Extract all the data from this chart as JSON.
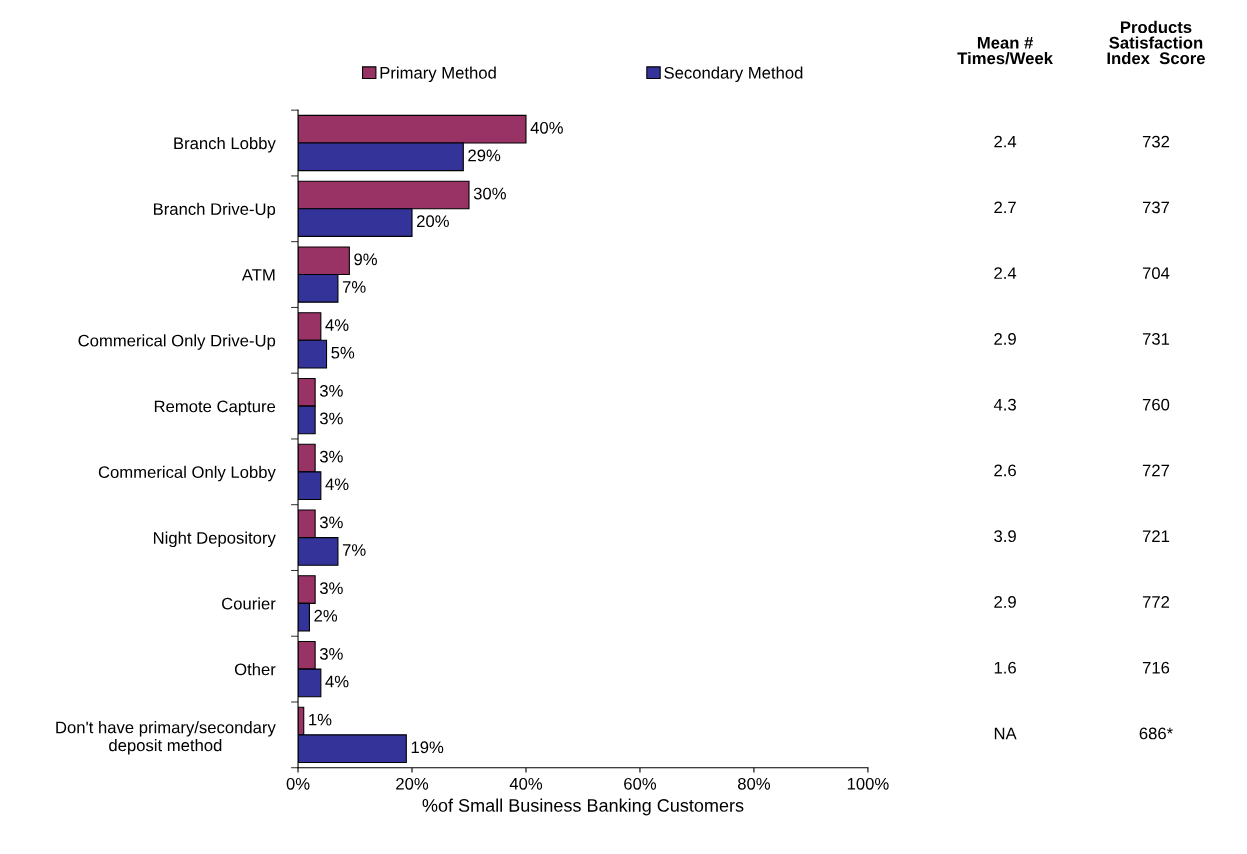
{
  "chart_data": {
    "type": "bar",
    "orientation": "horizontal",
    "xlabel": "%of Small Business Banking Customers",
    "categories": [
      "Branch Lobby",
      "Branch Drive-Up",
      "ATM",
      "Commerical Only Drive-Up",
      "Remote Capture",
      "Commerical Only Lobby",
      "Night Depository",
      "Courier",
      "Other",
      "Don't have primary/secondary deposit method"
    ],
    "series": [
      {
        "name": "Primary Method",
        "color": "#993366",
        "values": [
          40,
          30,
          9,
          4,
          3,
          3,
          3,
          3,
          3,
          1
        ],
        "value_labels": [
          "40%",
          "30%",
          "9%",
          "4%",
          "3%",
          "3%",
          "3%",
          "3%",
          "3%",
          "1%"
        ]
      },
      {
        "name": "Secondary Method",
        "color": "#333399",
        "values": [
          29,
          20,
          7,
          5,
          3,
          4,
          7,
          2,
          4,
          19
        ],
        "value_labels": [
          "29%",
          "20%",
          "7%",
          "5%",
          "3%",
          "4%",
          "7%",
          "2%",
          "4%",
          "19%"
        ]
      }
    ],
    "xlim": [
      0,
      100
    ],
    "xticks": [
      {
        "value": 0,
        "label": "0%"
      },
      {
        "value": 20,
        "label": "20%"
      },
      {
        "value": 40,
        "label": "40%"
      },
      {
        "value": 60,
        "label": "60%"
      },
      {
        "value": 80,
        "label": "80%"
      },
      {
        "value": 100,
        "label": "100%"
      }
    ],
    "grid": false,
    "legend": "top",
    "annotations": [
      "Mean #\nTimes/Week",
      "Products\nSatisfaction\nIndex  Score",
      "2.4",
      "732",
      "2.7",
      "737",
      "2.4",
      "704",
      "2.9",
      "731",
      "4.3",
      "760",
      "2.6",
      "727",
      "3.9",
      "721",
      "2.9",
      "772",
      "1.6",
      "716",
      "NA",
      "686*"
    ]
  }
}
